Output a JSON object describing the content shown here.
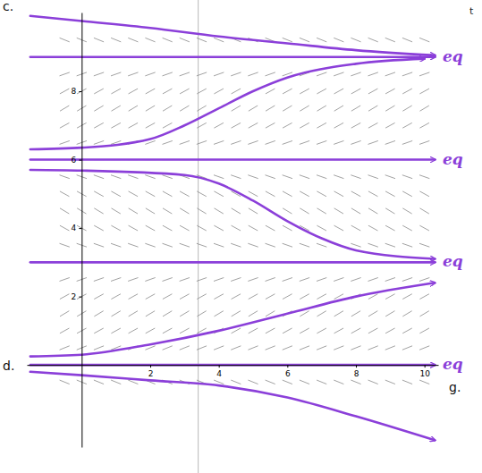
{
  "chart_data": {
    "type": "slope_field",
    "x_label": "t",
    "annotations": [
      {
        "text": "c."
      },
      {
        "text": "d."
      },
      {
        "text": "g."
      }
    ],
    "xlim": [
      -1.6,
      10.4
    ],
    "ylim": [
      -2.4,
      10.3
    ],
    "xticks": [
      2,
      4,
      6,
      8,
      10
    ],
    "yticks": [
      2,
      4,
      6,
      8
    ],
    "vertical_line": 3.4,
    "slope_field": {
      "color": "#8a8a8a",
      "t": [
        -0.5,
        0,
        0.5,
        1,
        1.5,
        2,
        2.5,
        3,
        3.5,
        4,
        4.5,
        5,
        5.5,
        6,
        6.5,
        7,
        7.5,
        8,
        8.5,
        9,
        9.5,
        10
      ],
      "y": [
        -0.5,
        0,
        0.5,
        1,
        1.5,
        2,
        2.5,
        3,
        3.5,
        4,
        4.5,
        5,
        5.5,
        6,
        6.5,
        7,
        7.5,
        8,
        8.5,
        9,
        9.5
      ],
      "slopes": [
        -0.4,
        0,
        0.4,
        0.55,
        0.6,
        0.55,
        0.35,
        0,
        -0.35,
        -0.55,
        -0.6,
        -0.55,
        -0.35,
        0,
        0.35,
        0.55,
        0.6,
        0.55,
        0.35,
        0,
        -0.4
      ]
    },
    "series": [
      {
        "type": "line",
        "color": "#8b3fd9",
        "marker": "arrow",
        "x": [
          -1.5,
          0,
          2,
          4,
          6,
          8,
          10.3
        ],
        "values": [
          10.2,
          10.05,
          9.85,
          9.6,
          9.4,
          9.2,
          9.05
        ]
      },
      {
        "type": "line",
        "color": "#8b3fd9",
        "marker": "arrow",
        "label": "eq",
        "x": [
          -1.5,
          10.3
        ],
        "values": [
          9,
          9
        ]
      },
      {
        "type": "line",
        "color": "#8b3fd9",
        "marker": "arrow",
        "x": [
          -1.5,
          0,
          2,
          3,
          4,
          5,
          6,
          8,
          10
        ],
        "values": [
          6.3,
          6.35,
          6.6,
          7.0,
          7.5,
          8.0,
          8.4,
          8.8,
          8.95
        ]
      },
      {
        "type": "line",
        "color": "#8b3fd9",
        "marker": "arrow",
        "label": "eq",
        "x": [
          -1.5,
          10.3
        ],
        "values": [
          6,
          6
        ]
      },
      {
        "type": "line",
        "color": "#8b3fd9",
        "marker": "arrow",
        "x": [
          -1.5,
          0,
          3,
          4,
          5,
          6,
          7,
          8,
          10.3
        ],
        "values": [
          5.7,
          5.68,
          5.55,
          5.3,
          4.8,
          4.2,
          3.7,
          3.35,
          3.1
        ]
      },
      {
        "type": "line",
        "color": "#8b3fd9",
        "marker": "arrow",
        "label": "eq",
        "x": [
          -1.5,
          10.3
        ],
        "values": [
          3,
          3
        ]
      },
      {
        "type": "line",
        "color": "#8b3fd9",
        "marker": "arrow",
        "x": [
          -1.5,
          0,
          2,
          4,
          6,
          8,
          10.3
        ],
        "values": [
          0.25,
          0.3,
          0.6,
          1.0,
          1.5,
          2.0,
          2.4
        ]
      },
      {
        "type": "line",
        "color": "#8b3fd9",
        "marker": "arrow",
        "label": "eq",
        "x": [
          -1.5,
          10.3
        ],
        "values": [
          0,
          0
        ]
      },
      {
        "type": "line",
        "color": "#8b3fd9",
        "marker": "arrow",
        "x": [
          -1.5,
          0,
          2,
          4,
          6,
          8,
          10.3
        ],
        "values": [
          -0.2,
          -0.3,
          -0.45,
          -0.6,
          -0.95,
          -1.5,
          -2.2
        ]
      }
    ]
  }
}
